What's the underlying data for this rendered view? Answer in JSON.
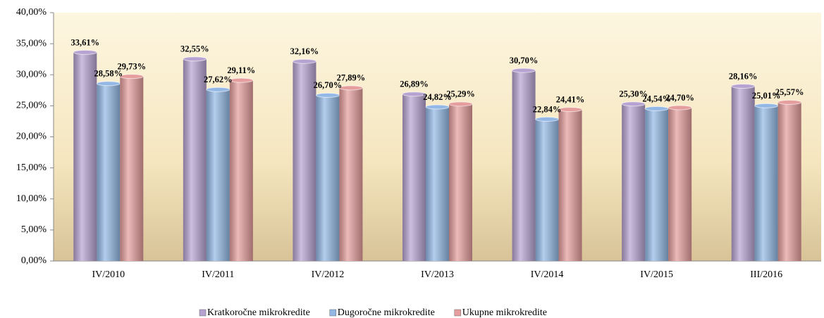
{
  "chart_data": {
    "type": "bar",
    "categories": [
      "IV/2010",
      "IV/2011",
      "IV/2012",
      "IV/2013",
      "IV/2014",
      "IV/2015",
      "III/2016"
    ],
    "series": [
      {
        "name": "Kratkoročne mikrokredite",
        "color": "#b7a3d1",
        "values": [
          33.61,
          32.55,
          32.16,
          26.89,
          30.7,
          25.3,
          28.16
        ],
        "value_labels": [
          "33,61%",
          "32,55%",
          "32,16%",
          "26,89%",
          "30,70%",
          "25,30%",
          "28,16%"
        ]
      },
      {
        "name": "Dugoročne mikrokredite",
        "color": "#93b8e6",
        "values": [
          28.58,
          27.62,
          26.7,
          24.82,
          22.84,
          24.54,
          25.01
        ],
        "value_labels": [
          "28,58%",
          "27,62%",
          "26,70%",
          "24,82%",
          "22,84%",
          "24,54%",
          "25,01%"
        ]
      },
      {
        "name": "Ukupne mikrokredite",
        "color": "#e59d9d",
        "values": [
          29.73,
          29.11,
          27.89,
          25.29,
          24.41,
          24.7,
          25.57
        ],
        "value_labels": [
          "29,73%",
          "29,11%",
          "27,89%",
          "25,29%",
          "24,41%",
          "24,70%",
          "25,57%"
        ]
      }
    ],
    "ylim": [
      0,
      40
    ],
    "yticks": [
      {
        "value": 0,
        "label": "0,00%"
      },
      {
        "value": 5,
        "label": "5,00%"
      },
      {
        "value": 10,
        "label": "10,00%"
      },
      {
        "value": 15,
        "label": "15,00%"
      },
      {
        "value": 20,
        "label": "20,00%"
      },
      {
        "value": 25,
        "label": "25,00%"
      },
      {
        "value": 30,
        "label": "30,00%"
      },
      {
        "value": 35,
        "label": "35,00%"
      },
      {
        "value": 40,
        "label": "40,00%"
      }
    ],
    "legend": "bottom"
  }
}
